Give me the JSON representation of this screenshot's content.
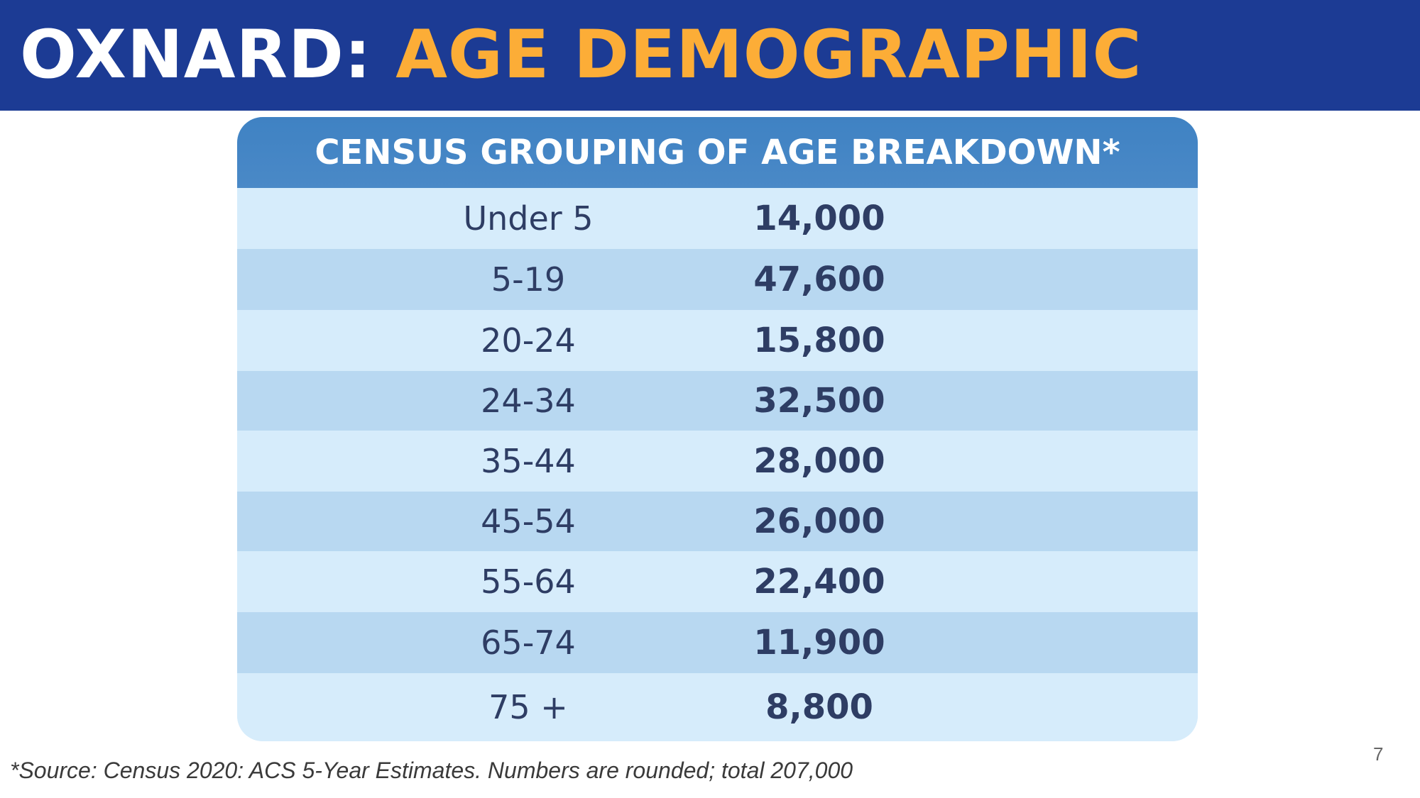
{
  "title": {
    "prefix": "OXNARD:",
    "main": "AGE DEMOGRAPHIC"
  },
  "table": {
    "header": "CENSUS GROUPING OF AGE BREAKDOWN*",
    "rows": [
      {
        "age": "Under 5",
        "count": "14,000"
      },
      {
        "age": "5-19",
        "count": "47,600"
      },
      {
        "age": "20-24",
        "count": "15,800"
      },
      {
        "age": "24-34",
        "count": "32,500"
      },
      {
        "age": "35-44",
        "count": "28,000"
      },
      {
        "age": "45-54",
        "count": "26,000"
      },
      {
        "age": "55-64",
        "count": "22,400"
      },
      {
        "age": "65-74",
        "count": "11,900"
      },
      {
        "age": "75 +",
        "count": "8,800"
      }
    ]
  },
  "footnote": "*Source: Census 2020: ACS 5-Year Estimates. Numbers are rounded; total 207,000",
  "page_number": "7",
  "colors": {
    "title_bar": "#1c3b94",
    "title_accent": "#fcad37",
    "table_header": "#4a89c7",
    "row_light": "#d6ecfb",
    "row_dark": "#b8d8f1",
    "text_dark": "#2e3d64"
  }
}
